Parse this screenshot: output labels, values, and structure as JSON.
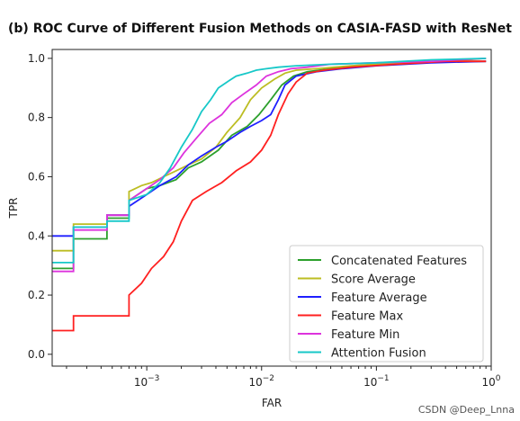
{
  "chart_data": {
    "type": "line",
    "title": "(b) ROC Curve of Different Fusion Methods on CASIA-FASD with ResNet",
    "xlabel": "FAR",
    "ylabel": "TPR",
    "x_scale": "log",
    "xlim": [
      0.00015,
      1.0
    ],
    "ylim": [
      -0.04,
      1.03
    ],
    "x_ticks": [
      {
        "value": 0.001,
        "base": "10",
        "exp": "−3"
      },
      {
        "value": 0.01,
        "base": "10",
        "exp": "−2"
      },
      {
        "value": 0.1,
        "base": "10",
        "exp": "−1"
      },
      {
        "value": 1.0,
        "base": "10",
        "exp": "0"
      }
    ],
    "y_ticks": [
      {
        "value": 0.0,
        "label": "0.0"
      },
      {
        "value": 0.2,
        "label": "0.2"
      },
      {
        "value": 0.4,
        "label": "0.4"
      },
      {
        "value": 0.6,
        "label": "0.6"
      },
      {
        "value": 0.8,
        "label": "0.8"
      },
      {
        "value": 1.0,
        "label": "1.0"
      }
    ],
    "grid": false,
    "legend_position": "bottom-right",
    "series": [
      {
        "name": "Concatenated Features",
        "color": "#2ca02c",
        "x": [
          0.00015,
          0.00023,
          0.00023,
          0.00045,
          0.00045,
          0.0007,
          0.0007,
          0.001,
          0.0013,
          0.0018,
          0.0023,
          0.003,
          0.0042,
          0.0055,
          0.0075,
          0.0095,
          0.012,
          0.015,
          0.019,
          0.025,
          0.04,
          0.08,
          0.2,
          0.5,
          0.9
        ],
        "y": [
          0.29,
          0.29,
          0.39,
          0.39,
          0.46,
          0.46,
          0.52,
          0.56,
          0.57,
          0.59,
          0.63,
          0.65,
          0.69,
          0.74,
          0.77,
          0.81,
          0.86,
          0.91,
          0.94,
          0.955,
          0.965,
          0.975,
          0.985,
          0.99,
          0.99
        ]
      },
      {
        "name": "Score Average",
        "color": "#bcbd22",
        "x": [
          0.00015,
          0.00023,
          0.00023,
          0.00045,
          0.00045,
          0.0007,
          0.0007,
          0.0009,
          0.0011,
          0.0014,
          0.0018,
          0.0023,
          0.003,
          0.004,
          0.005,
          0.0065,
          0.008,
          0.01,
          0.013,
          0.016,
          0.02,
          0.03,
          0.06,
          0.15,
          0.4,
          0.9
        ],
        "y": [
          0.35,
          0.35,
          0.44,
          0.44,
          0.47,
          0.47,
          0.55,
          0.57,
          0.58,
          0.6,
          0.62,
          0.64,
          0.66,
          0.7,
          0.75,
          0.8,
          0.86,
          0.9,
          0.93,
          0.95,
          0.96,
          0.965,
          0.975,
          0.985,
          0.99,
          1.0
        ]
      },
      {
        "name": "Feature Average",
        "color": "#1f1fff",
        "x": [
          0.00015,
          0.00023,
          0.00023,
          0.00045,
          0.00045,
          0.0007,
          0.0007,
          0.001,
          0.0013,
          0.0018,
          0.0023,
          0.003,
          0.004,
          0.005,
          0.0065,
          0.008,
          0.01,
          0.012,
          0.014,
          0.016,
          0.02,
          0.03,
          0.05,
          0.1,
          0.3,
          0.9
        ],
        "y": [
          0.4,
          0.4,
          0.43,
          0.43,
          0.47,
          0.47,
          0.5,
          0.54,
          0.57,
          0.6,
          0.64,
          0.67,
          0.7,
          0.72,
          0.75,
          0.77,
          0.79,
          0.81,
          0.86,
          0.91,
          0.94,
          0.955,
          0.965,
          0.975,
          0.985,
          0.99
        ]
      },
      {
        "name": "Feature Max",
        "color": "#ff2020",
        "x": [
          0.00015,
          0.00023,
          0.00023,
          0.0007,
          0.0007,
          0.0009,
          0.0011,
          0.0014,
          0.0017,
          0.002,
          0.0025,
          0.0033,
          0.0045,
          0.006,
          0.008,
          0.01,
          0.012,
          0.014,
          0.017,
          0.02,
          0.025,
          0.035,
          0.06,
          0.15,
          0.4,
          0.9
        ],
        "y": [
          0.08,
          0.08,
          0.13,
          0.13,
          0.2,
          0.24,
          0.29,
          0.33,
          0.38,
          0.45,
          0.52,
          0.55,
          0.58,
          0.62,
          0.65,
          0.69,
          0.74,
          0.81,
          0.88,
          0.92,
          0.95,
          0.96,
          0.97,
          0.98,
          0.99,
          0.99
        ]
      },
      {
        "name": "Feature Min",
        "color": "#dd33dd",
        "x": [
          0.00015,
          0.00023,
          0.00023,
          0.00045,
          0.00045,
          0.0007,
          0.0007,
          0.001,
          0.0013,
          0.0017,
          0.0021,
          0.0027,
          0.0035,
          0.0045,
          0.0055,
          0.007,
          0.009,
          0.011,
          0.014,
          0.018,
          0.025,
          0.04,
          0.1,
          0.3,
          0.9
        ],
        "y": [
          0.28,
          0.28,
          0.42,
          0.42,
          0.47,
          0.47,
          0.52,
          0.56,
          0.59,
          0.63,
          0.68,
          0.73,
          0.78,
          0.81,
          0.85,
          0.88,
          0.91,
          0.94,
          0.955,
          0.965,
          0.97,
          0.98,
          0.985,
          0.99,
          1.0
        ]
      },
      {
        "name": "Attention Fusion",
        "color": "#17c8c8",
        "x": [
          0.00015,
          0.00023,
          0.00023,
          0.00045,
          0.00045,
          0.0007,
          0.0007,
          0.001,
          0.0013,
          0.0016,
          0.002,
          0.0025,
          0.003,
          0.0036,
          0.0042,
          0.005,
          0.006,
          0.0075,
          0.009,
          0.011,
          0.014,
          0.02,
          0.04,
          0.1,
          0.3,
          0.9
        ],
        "y": [
          0.31,
          0.31,
          0.43,
          0.43,
          0.45,
          0.45,
          0.52,
          0.54,
          0.58,
          0.63,
          0.7,
          0.76,
          0.82,
          0.86,
          0.9,
          0.92,
          0.94,
          0.95,
          0.96,
          0.965,
          0.97,
          0.975,
          0.98,
          0.985,
          0.995,
          1.0
        ]
      }
    ]
  },
  "watermark": "CSDN @Deep_Lnna"
}
